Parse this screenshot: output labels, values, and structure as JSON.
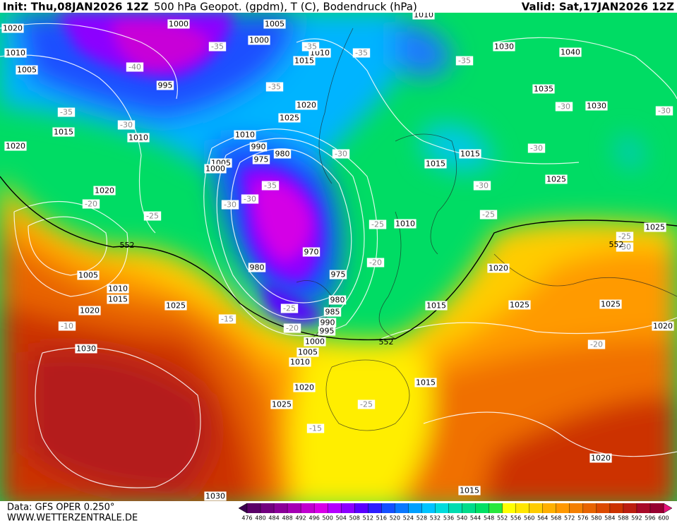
{
  "header": {
    "init": "Init: Thu,08JAN2026 12Z",
    "title": "500 hPa Geopot. (gpdm), T (C), Bodendruck (hPa)",
    "valid": "Valid: Sat,17JAN2026 12Z"
  },
  "footer": {
    "source": "Data: GFS OPER 0.250°",
    "site": "WWW.WETTERZENTRALE.DE"
  },
  "map": {
    "pressure_labels": [
      "1020",
      "1010",
      "1005",
      "1000",
      "1005",
      "1000",
      "1010",
      "1030",
      "1040",
      "1010",
      "1015",
      "995",
      "1035",
      "1030",
      "1020",
      "1025",
      "1015",
      "1010",
      "1010",
      "990",
      "980",
      "1020",
      "975",
      "1015",
      "1015",
      "1005",
      "1000",
      "1025",
      "1020",
      "1010",
      "1025",
      "970",
      "980",
      "1020",
      "1005",
      "975",
      "1010",
      "1015",
      "980",
      "1025",
      "1020",
      "1015",
      "1025",
      "1025",
      "985",
      "990",
      "995",
      "1020",
      "1000",
      "1030",
      "1005",
      "1010",
      "1015",
      "1020",
      "1025",
      "1020",
      "1030",
      "1015"
    ],
    "temperature_labels": [
      "-40",
      "-35",
      "-35",
      "-35",
      "-35",
      "-35",
      "-35",
      "-30",
      "-30",
      "-30",
      "-30",
      "-30",
      "-35",
      "-30",
      "-30",
      "-30",
      "-25",
      "-20",
      "-25",
      "-25",
      "-25",
      "-30",
      "-20",
      "-15",
      "-20",
      "-25",
      "-10",
      "-20",
      "-25",
      "-15"
    ],
    "height_labels": [
      "552",
      "552",
      "552"
    ]
  },
  "colorbar": {
    "ticks": [
      476,
      480,
      484,
      488,
      492,
      496,
      500,
      504,
      508,
      512,
      516,
      520,
      524,
      528,
      532,
      536,
      540,
      544,
      548,
      552,
      556,
      560,
      564,
      568,
      572,
      576,
      580,
      584,
      588,
      592,
      596,
      600
    ],
    "colors": [
      "#5a0068",
      "#72007f",
      "#8a0098",
      "#a400b4",
      "#c000d0",
      "#d800e8",
      "#b400ff",
      "#8c00ff",
      "#5a00ff",
      "#2d1eff",
      "#1450ff",
      "#0a78ff",
      "#00a0ff",
      "#00c4ff",
      "#00dcdc",
      "#00dcb0",
      "#00dc8a",
      "#00e064",
      "#28e83c",
      "#ffff00",
      "#ffe600",
      "#ffcc00",
      "#ffb000",
      "#ff9800",
      "#f47f00",
      "#e86400",
      "#dc4a00",
      "#cc3200",
      "#bc1e10",
      "#a80a28",
      "#960030"
    ],
    "under": "#3c0050",
    "over": "#e6147a"
  }
}
